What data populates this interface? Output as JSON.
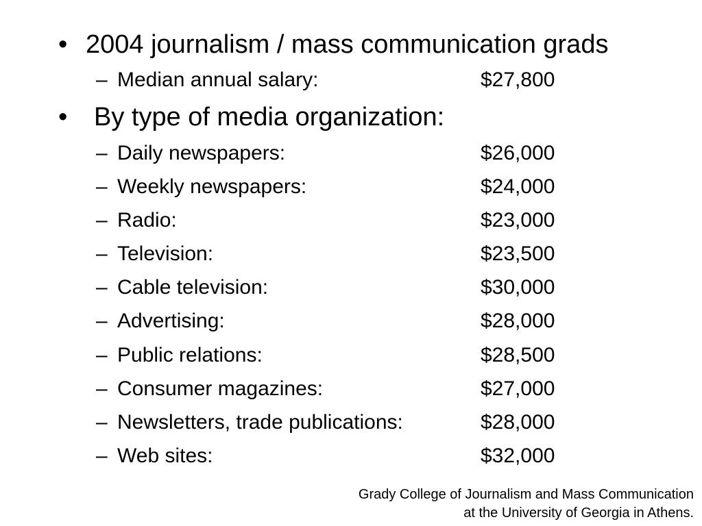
{
  "slide": {
    "bullet_char": "•",
    "dash_char": "–",
    "bullets": [
      {
        "text": "2004 journalism / mass communication grads",
        "subitems": [
          {
            "label": "Median annual salary:",
            "value": "$27,800"
          }
        ]
      },
      {
        "text": "By type of media organization:",
        "subitems": [
          {
            "label": "Daily newspapers:",
            "value": "$26,000"
          },
          {
            "label": "Weekly newspapers:",
            "value": "$24,000"
          },
          {
            "label": "Radio:",
            "value": "$23,000"
          },
          {
            "label": "Television:",
            "value": "$23,500"
          },
          {
            "label": "Cable television:",
            "value": "$30,000"
          },
          {
            "label": "Advertising:",
            "value": "$28,000"
          },
          {
            "label": "Public relations:",
            "value": "$28,500"
          },
          {
            "label": "Consumer magazines:",
            "value": "$27,000"
          },
          {
            "label": "Newsletters, trade publications:",
            "value": "$28,000"
          },
          {
            "label": "Web sites:",
            "value": "$32,000"
          }
        ]
      }
    ]
  },
  "footer": {
    "line1": "Grady College of Journalism and Mass Communication",
    "line2": "at the University of Georgia in Athens."
  }
}
